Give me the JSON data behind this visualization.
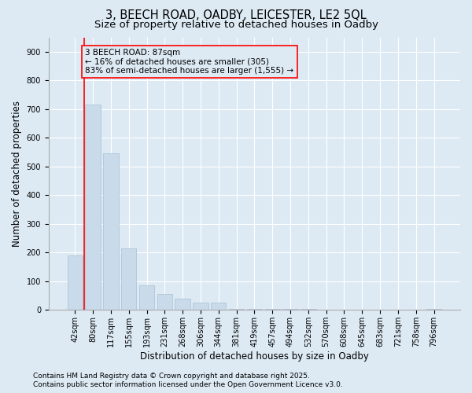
{
  "title_line1": "3, BEECH ROAD, OADBY, LEICESTER, LE2 5QL",
  "title_line2": "Size of property relative to detached houses in Oadby",
  "xlabel": "Distribution of detached houses by size in Oadby",
  "ylabel": "Number of detached properties",
  "bar_color": "#c9daea",
  "bar_edge_color": "#a8c0d4",
  "bg_color": "#ddeaf4",
  "categories": [
    "42sqm",
    "80sqm",
    "117sqm",
    "155sqm",
    "193sqm",
    "231sqm",
    "268sqm",
    "306sqm",
    "344sqm",
    "381sqm",
    "419sqm",
    "457sqm",
    "494sqm",
    "532sqm",
    "570sqm",
    "608sqm",
    "645sqm",
    "683sqm",
    "721sqm",
    "758sqm",
    "796sqm"
  ],
  "values": [
    190,
    715,
    545,
    215,
    85,
    55,
    40,
    25,
    25,
    5,
    5,
    5,
    5,
    5,
    0,
    0,
    0,
    0,
    0,
    0,
    5
  ],
  "annotation_text": "3 BEECH ROAD: 87sqm\n← 16% of detached houses are smaller (305)\n83% of semi-detached houses are larger (1,555) →",
  "ylim": [
    0,
    950
  ],
  "yticks": [
    0,
    100,
    200,
    300,
    400,
    500,
    600,
    700,
    800,
    900
  ],
  "vline_xidx": 0.5,
  "footer_line1": "Contains HM Land Registry data © Crown copyright and database right 2025.",
  "footer_line2": "Contains public sector information licensed under the Open Government Licence v3.0.",
  "grid_color": "#ffffff",
  "title_fontsize": 10.5,
  "subtitle_fontsize": 9.5,
  "axis_label_fontsize": 8.5,
  "tick_fontsize": 7,
  "annotation_fontsize": 7.5,
  "footer_fontsize": 6.5
}
